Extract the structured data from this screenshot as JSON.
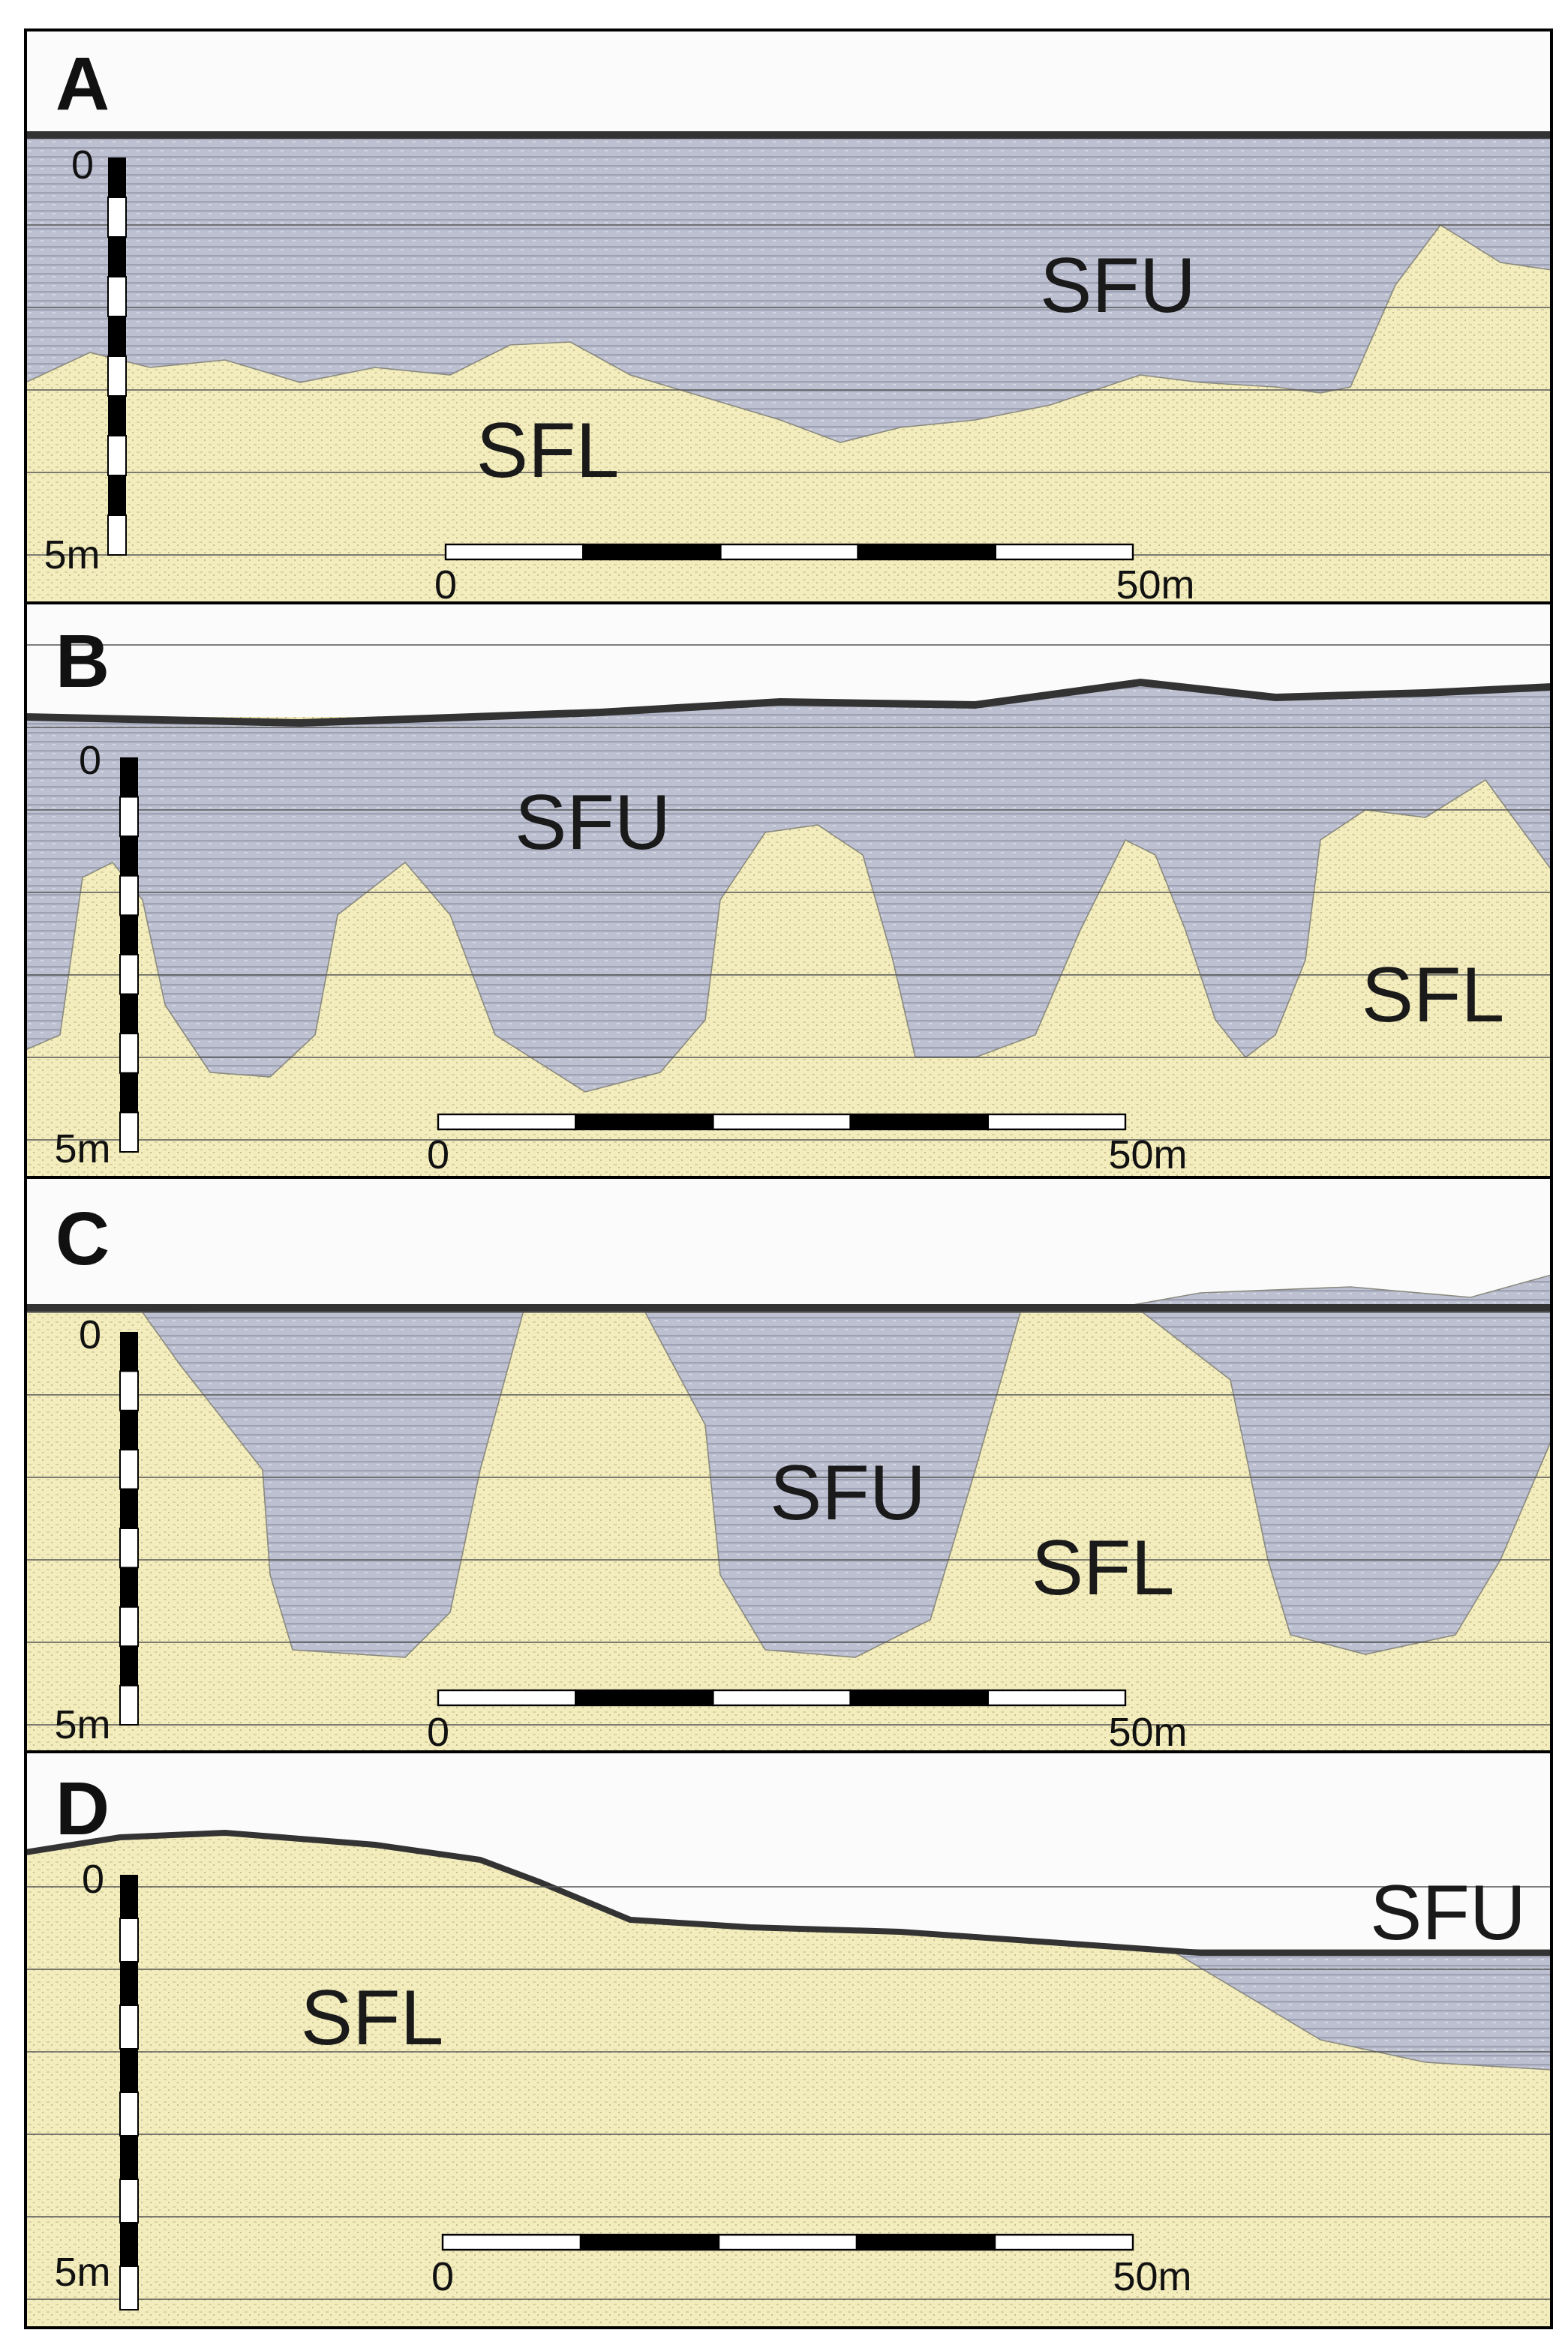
{
  "panels": [
    {
      "label": "A",
      "upper_unit": "SFU",
      "lower_unit": "SFL",
      "depth_top": "0",
      "depth_bottom": "5m",
      "scale_start": "0",
      "scale_end": "50m"
    },
    {
      "label": "B",
      "upper_unit": "SFU",
      "lower_unit": "SFL",
      "depth_top": "0",
      "depth_bottom": "5m",
      "scale_start": "0",
      "scale_end": "50m"
    },
    {
      "label": "C",
      "upper_unit": "SFU",
      "lower_unit": "SFL",
      "depth_top": "0",
      "depth_bottom": "5m",
      "scale_start": "0",
      "scale_end": "50m"
    },
    {
      "label": "D",
      "upper_unit": "SFU",
      "lower_unit": "SFL",
      "depth_top": "0",
      "depth_bottom": "5m",
      "scale_start": "0",
      "scale_end": "50m"
    }
  ]
}
